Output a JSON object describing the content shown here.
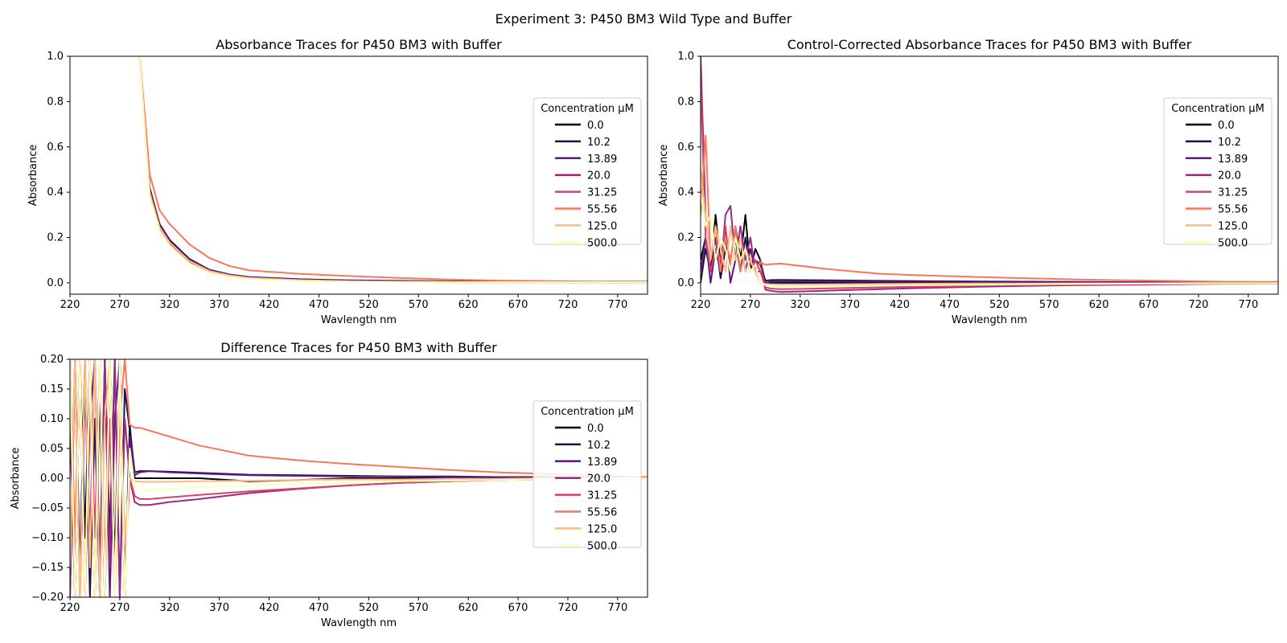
{
  "figure": {
    "suptitle": "Experiment 3: P450 BM3 Wild Type and Buffer"
  },
  "legend_title": "Concentration µM",
  "series_colors": [
    "#000004",
    "#1d1147",
    "#5f187f",
    "#982d80",
    "#d3436e",
    "#f8765c",
    "#febb81",
    "#fcfdbf"
  ],
  "chart_data": [
    {
      "type": "line",
      "title": "Absorbance Traces for P450 BM3 with Buffer",
      "xlabel": "Wavlength nm",
      "ylabel": "Absorbance",
      "xlim": [
        220,
        800
      ],
      "ylim": [
        -0.05,
        1.0
      ],
      "xticks": [
        220,
        270,
        320,
        370,
        420,
        470,
        520,
        570,
        620,
        670,
        720,
        770
      ],
      "yticks": [
        "0.0",
        "0.2",
        "0.4",
        "0.6",
        "0.8",
        "1.0"
      ],
      "ytick_values": [
        0.0,
        0.2,
        0.4,
        0.6,
        0.8,
        1.0
      ],
      "grid": false,
      "legend_position": "center-right",
      "x": [
        290,
        295,
        300,
        310,
        320,
        340,
        360,
        380,
        400,
        450,
        500,
        550,
        600,
        650,
        700,
        750,
        800
      ],
      "series": [
        {
          "name": "0.0",
          "color": "#000004",
          "values": [
            1.0,
            0.7,
            0.4,
            0.25,
            0.18,
            0.1,
            0.055,
            0.035,
            0.025,
            0.015,
            0.01,
            0.008,
            0.006,
            0.005,
            0.004,
            0.004,
            0.005
          ]
        },
        {
          "name": "10.2",
          "color": "#1d1147",
          "values": [
            1.0,
            0.72,
            0.42,
            0.26,
            0.19,
            0.105,
            0.058,
            0.037,
            0.026,
            0.016,
            0.011,
            0.009,
            0.007,
            0.006,
            0.005,
            0.005,
            0.006
          ]
        },
        {
          "name": "13.89",
          "color": "#5f187f",
          "values": [
            1.0,
            0.71,
            0.41,
            0.255,
            0.185,
            0.1,
            0.056,
            0.036,
            0.025,
            0.015,
            0.01,
            0.008,
            0.006,
            0.005,
            0.004,
            0.004,
            0.005
          ]
        },
        {
          "name": "20.0",
          "color": "#982d80",
          "values": [
            1.0,
            0.69,
            0.39,
            0.24,
            0.175,
            0.093,
            0.05,
            0.031,
            0.02,
            0.01,
            0.005,
            0.004,
            0.003,
            0.003,
            0.002,
            0.002,
            0.003
          ]
        },
        {
          "name": "31.25",
          "color": "#d3436e",
          "values": [
            1.0,
            0.69,
            0.39,
            0.242,
            0.176,
            0.094,
            0.051,
            0.032,
            0.021,
            0.011,
            0.006,
            0.004,
            0.003,
            0.003,
            0.002,
            0.002,
            0.003
          ]
        },
        {
          "name": "55.56",
          "color": "#f8765c",
          "values": [
            1.0,
            0.75,
            0.48,
            0.32,
            0.26,
            0.17,
            0.11,
            0.075,
            0.055,
            0.04,
            0.03,
            0.022,
            0.015,
            0.01,
            0.008,
            0.006,
            0.007
          ]
        },
        {
          "name": "125.0",
          "color": "#febb81",
          "values": [
            1.0,
            0.7,
            0.4,
            0.245,
            0.178,
            0.096,
            0.052,
            0.033,
            0.022,
            0.012,
            0.007,
            0.005,
            0.004,
            0.003,
            0.003,
            0.003,
            0.004
          ]
        },
        {
          "name": "500.0",
          "color": "#fcfdbf",
          "values": [
            1.0,
            0.68,
            0.38,
            0.23,
            0.165,
            0.085,
            0.045,
            0.027,
            0.017,
            0.008,
            0.004,
            0.003,
            0.002,
            0.002,
            0.002,
            0.002,
            0.003
          ]
        }
      ]
    },
    {
      "type": "line",
      "title": "Control-Corrected Absorbance Traces for P450 BM3 with Buffer",
      "xlabel": "Wavlength nm",
      "ylabel": "Absorbance",
      "xlim": [
        220,
        800
      ],
      "ylim": [
        -0.05,
        1.0
      ],
      "xticks": [
        220,
        270,
        320,
        370,
        420,
        470,
        520,
        570,
        620,
        670,
        720,
        770
      ],
      "yticks": [
        "0.0",
        "0.2",
        "0.4",
        "0.6",
        "0.8",
        "1.0"
      ],
      "ytick_values": [
        0.0,
        0.2,
        0.4,
        0.6,
        0.8,
        1.0
      ],
      "grid": false,
      "legend_position": "center-right",
      "x": [
        220,
        225,
        230,
        235,
        240,
        245,
        250,
        255,
        260,
        265,
        270,
        275,
        280,
        285,
        290,
        300,
        320,
        350,
        400,
        450,
        500,
        550,
        600,
        650,
        700,
        750,
        800
      ],
      "series": [
        {
          "name": "0.0",
          "color": "#000004",
          "values": [
            0.1,
            0.2,
            0.05,
            0.3,
            0.08,
            0.2,
            0.05,
            0.25,
            0.1,
            0.3,
            0.05,
            0.15,
            0.1,
            0.0,
            0.0,
            0.0,
            0.0,
            0.0,
            0.0,
            0.0,
            0.0,
            0.0,
            0.0,
            0.0,
            0.0,
            0.0,
            0.0
          ]
        },
        {
          "name": "10.2",
          "color": "#1d1147",
          "values": [
            0.0,
            0.15,
            0.05,
            0.2,
            0.02,
            0.15,
            0.05,
            0.2,
            0.05,
            0.2,
            0.05,
            0.1,
            0.08,
            0.01,
            0.012,
            0.013,
            0.012,
            0.011,
            0.009,
            0.007,
            0.006,
            0.005,
            0.004,
            0.003,
            0.003,
            0.002,
            0.002
          ]
        },
        {
          "name": "13.89",
          "color": "#5f187f",
          "values": [
            0.05,
            0.2,
            0.0,
            0.15,
            0.05,
            0.25,
            0.0,
            0.1,
            0.2,
            0.05,
            0.15,
            0.05,
            0.05,
            0.0,
            0.005,
            0.006,
            0.006,
            0.006,
            0.005,
            0.004,
            0.003,
            0.003,
            0.002,
            0.002,
            0.002,
            0.001,
            0.001
          ]
        },
        {
          "name": "20.0",
          "color": "#982d80",
          "values": [
            1.0,
            0.3,
            0.1,
            0.2,
            0.05,
            0.3,
            0.34,
            0.1,
            0.25,
            0.1,
            0.2,
            0.05,
            0.1,
            -0.03,
            -0.035,
            -0.04,
            -0.038,
            -0.034,
            -0.028,
            -0.022,
            -0.017,
            -0.013,
            -0.01,
            -0.008,
            -0.006,
            -0.004,
            -0.003
          ]
        },
        {
          "name": "31.25",
          "color": "#d3436e",
          "values": [
            0.9,
            0.2,
            0.05,
            0.15,
            0.1,
            0.25,
            0.05,
            0.2,
            0.1,
            0.15,
            0.05,
            0.1,
            0.05,
            -0.02,
            -0.025,
            -0.028,
            -0.027,
            -0.024,
            -0.02,
            -0.016,
            -0.012,
            -0.009,
            -0.007,
            -0.005,
            -0.004,
            -0.003,
            -0.002
          ]
        },
        {
          "name": "55.56",
          "color": "#f8765c",
          "values": [
            0.3,
            0.65,
            0.1,
            0.25,
            0.05,
            0.2,
            0.1,
            0.25,
            0.05,
            0.15,
            0.1,
            0.05,
            0.09,
            0.08,
            0.082,
            0.085,
            0.075,
            0.06,
            0.04,
            0.032,
            0.026,
            0.02,
            0.015,
            0.011,
            0.008,
            0.005,
            0.004
          ]
        },
        {
          "name": "125.0",
          "color": "#febb81",
          "values": [
            0.5,
            0.3,
            0.1,
            0.25,
            0.15,
            0.05,
            0.25,
            0.1,
            0.2,
            0.05,
            0.1,
            0.05,
            0.0,
            -0.005,
            -0.006,
            -0.007,
            -0.007,
            -0.006,
            -0.005,
            -0.004,
            -0.003,
            -0.003,
            -0.002,
            -0.002,
            -0.001,
            -0.001,
            -0.001
          ]
        },
        {
          "name": "500.0",
          "color": "#fcfdbf",
          "values": [
            0.4,
            0.25,
            0.3,
            0.1,
            0.2,
            0.15,
            0.05,
            0.2,
            0.1,
            0.15,
            0.05,
            0.08,
            0.0,
            -0.01,
            -0.012,
            -0.015,
            -0.016,
            -0.015,
            -0.012,
            -0.01,
            -0.008,
            -0.006,
            -0.005,
            -0.004,
            -0.003,
            -0.002,
            -0.002
          ]
        }
      ]
    },
    {
      "type": "line",
      "title": "Difference Traces for P450 BM3 with Buffer",
      "xlabel": "Wavlength nm",
      "ylabel": "Absorbance",
      "xlim": [
        220,
        800
      ],
      "ylim": [
        -0.2,
        0.2
      ],
      "xticks": [
        220,
        270,
        320,
        370,
        420,
        470,
        520,
        570,
        620,
        670,
        720,
        770
      ],
      "yticks": [
        "0.20",
        "0.15",
        "0.10",
        "0.05",
        "0.00",
        "−0.05",
        "−0.10",
        "−0.15",
        "−0.20"
      ],
      "ytick_values": [
        0.2,
        0.15,
        0.1,
        0.05,
        0.0,
        -0.05,
        -0.1,
        -0.15,
        -0.2
      ],
      "grid": false,
      "legend_position": "center-right",
      "x": [
        220,
        225,
        230,
        235,
        240,
        245,
        250,
        255,
        260,
        265,
        270,
        275,
        280,
        285,
        290,
        300,
        320,
        350,
        400,
        450,
        500,
        550,
        600,
        650,
        700,
        750,
        800
      ],
      "series": [
        {
          "name": "0.0",
          "color": "#000004",
          "values": [
            0.2,
            -0.2,
            0.2,
            -0.1,
            0.2,
            -0.2,
            0.15,
            -0.2,
            0.2,
            -0.15,
            0.2,
            -0.2,
            0.09,
            0.0,
            0.0,
            0.0,
            0.0,
            0.0,
            -0.005,
            -0.003,
            0.0,
            0.0,
            0.0,
            0.0,
            0.0,
            0.0,
            0.0
          ]
        },
        {
          "name": "10.2",
          "color": "#1d1147",
          "values": [
            -0.2,
            0.2,
            -0.15,
            0.2,
            -0.2,
            0.1,
            -0.2,
            0.2,
            -0.1,
            0.2,
            -0.2,
            0.15,
            0.08,
            0.01,
            0.012,
            0.012,
            0.011,
            0.009,
            0.006,
            0.005,
            0.004,
            0.003,
            0.003,
            0.002,
            0.002,
            0.001,
            0.001
          ]
        },
        {
          "name": "13.89",
          "color": "#5f187f",
          "values": [
            0.1,
            -0.2,
            0.2,
            -0.2,
            0.1,
            0.2,
            -0.15,
            0.2,
            -0.2,
            0.1,
            0.2,
            -0.2,
            0.07,
            0.005,
            0.01,
            0.012,
            0.01,
            0.008,
            0.005,
            0.004,
            0.003,
            0.003,
            0.002,
            0.002,
            0.001,
            0.001,
            0.001
          ]
        },
        {
          "name": "20.0",
          "color": "#982d80",
          "values": [
            -0.2,
            0.2,
            -0.2,
            0.15,
            -0.1,
            0.2,
            -0.2,
            0.2,
            -0.15,
            0.2,
            -0.2,
            0.1,
            0.0,
            -0.04,
            -0.045,
            -0.045,
            -0.04,
            -0.035,
            -0.025,
            -0.018,
            -0.012,
            -0.008,
            -0.005,
            -0.003,
            -0.002,
            -0.001,
            0.0
          ]
        },
        {
          "name": "31.25",
          "color": "#d3436e",
          "values": [
            0.15,
            -0.15,
            0.2,
            -0.2,
            0.2,
            -0.1,
            0.2,
            -0.2,
            0.1,
            -0.2,
            0.2,
            -0.15,
            0.0,
            -0.03,
            -0.035,
            -0.035,
            -0.032,
            -0.028,
            -0.022,
            -0.017,
            -0.012,
            -0.008,
            -0.005,
            -0.003,
            -0.002,
            -0.001,
            0.0
          ]
        },
        {
          "name": "55.56",
          "color": "#f8765c",
          "values": [
            0.2,
            -0.1,
            0.2,
            -0.2,
            0.15,
            -0.2,
            0.2,
            -0.15,
            0.2,
            -0.2,
            0.1,
            0.2,
            0.09,
            0.085,
            0.085,
            0.08,
            0.07,
            0.055,
            0.038,
            0.03,
            0.024,
            0.019,
            0.014,
            0.01,
            0.007,
            0.004,
            0.002
          ]
        },
        {
          "name": "125.0",
          "color": "#febb81",
          "values": [
            -0.15,
            0.2,
            -0.2,
            0.2,
            -0.15,
            0.2,
            -0.2,
            0.1,
            0.2,
            -0.2,
            0.15,
            -0.1,
            0.0,
            -0.005,
            -0.006,
            -0.006,
            -0.006,
            -0.005,
            -0.004,
            -0.003,
            -0.002,
            -0.002,
            -0.001,
            -0.001,
            0.0,
            0.0,
            0.0
          ]
        },
        {
          "name": "500.0",
          "color": "#fcfdbf",
          "values": [
            0.2,
            -0.2,
            0.2,
            -0.2,
            0.2,
            -0.2,
            0.2,
            -0.2,
            0.2,
            -0.2,
            0.2,
            -0.2,
            0.05,
            -0.015,
            -0.02,
            -0.02,
            -0.018,
            -0.015,
            -0.012,
            -0.009,
            -0.007,
            -0.005,
            -0.004,
            -0.003,
            -0.002,
            -0.001,
            0.0
          ]
        }
      ]
    }
  ]
}
